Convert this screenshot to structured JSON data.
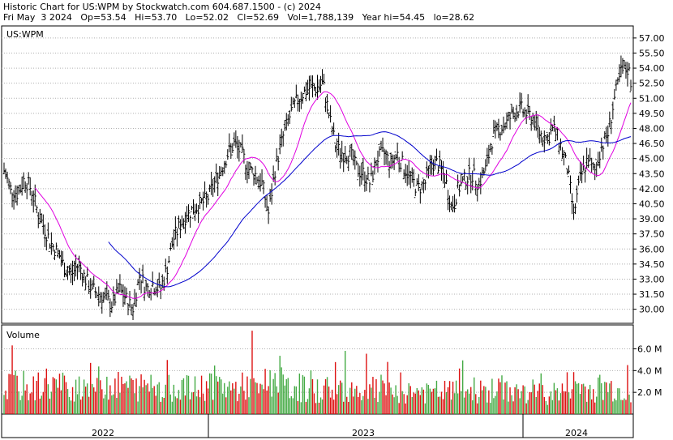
{
  "header": {
    "line1": "Historic Chart for US:WPM by Stockwatch.com 604.687.1500 - (c) 2024",
    "line2": "Fri May  3 2024   Op=53.54   Hi=53.70   Lo=52.02   Cl=52.69   Vol=1,788,139   Year hi=54.45   lo=28.62"
  },
  "chart_data": [
    {
      "type": "line",
      "panel": "price",
      "title": "US:WPM",
      "style": "high-low bars with moving averages",
      "y_ticks": [
        "57.00",
        "55.50",
        "54.00",
        "52.50",
        "51.00",
        "49.50",
        "48.00",
        "46.50",
        "45.00",
        "43.50",
        "42.00",
        "40.50",
        "39.00",
        "37.50",
        "36.00",
        "34.50",
        "33.00",
        "31.50",
        "30.00"
      ],
      "ylim": [
        28.6,
        58.2
      ],
      "x_ticks": [
        "2022",
        "2023",
        "2024"
      ],
      "colors": {
        "bars": "#000000",
        "ma_short": "#e000e0",
        "ma_long": "#0000cc",
        "grid": "#b0b0b0"
      },
      "series": [
        {
          "kind": "price",
          "x": [
            0,
            8,
            17,
            25,
            33,
            42,
            50,
            58,
            67,
            75,
            83,
            92,
            100,
            108,
            117,
            125,
            133,
            142,
            150,
            158,
            167,
            175,
            183,
            192,
            200,
            208,
            217,
            225,
            233,
            242,
            250,
            258,
            267,
            275,
            283,
            292,
            300,
            308,
            317,
            325,
            333,
            342,
            350,
            358,
            367,
            375,
            383,
            392,
            400,
            408,
            417,
            425,
            433,
            442,
            450,
            458,
            467,
            475,
            483,
            492,
            500,
            508,
            517,
            525,
            533,
            542,
            550,
            558,
            567,
            575,
            583,
            592,
            600,
            608,
            617,
            625,
            633,
            642,
            650,
            658,
            667,
            675,
            683,
            692,
            700,
            708,
            717,
            725,
            733,
            742,
            750,
            758,
            767,
            770
          ],
          "close": [
            43.8,
            42.0,
            41.5,
            43.0,
            42.0,
            39.5,
            38.0,
            36.5,
            35.5,
            34.0,
            33.5,
            34.5,
            33.0,
            32.0,
            31.5,
            31.0,
            30.5,
            32.0,
            31.0,
            30.0,
            33.5,
            32.0,
            32.5,
            32.0,
            34.0,
            37.0,
            38.5,
            39.5,
            40.0,
            40.5,
            41.0,
            42.5,
            44.0,
            45.5,
            46.5,
            45.5,
            44.0,
            43.5,
            42.5,
            39.5,
            44.0,
            47.0,
            49.0,
            50.5,
            51.5,
            52.0,
            52.0,
            52.5,
            49.0,
            46.0,
            45.5,
            45.5,
            44.0,
            43.5,
            42.5,
            45.0,
            45.5,
            44.5,
            45.5,
            44.0,
            43.0,
            42.0,
            42.5,
            44.5,
            44.5,
            43.0,
            40.0,
            42.0,
            43.0,
            43.5,
            42.5,
            44.0,
            47.0,
            48.0,
            48.5,
            49.5,
            50.0,
            49.5,
            49.0,
            47.5,
            47.0,
            48.0,
            46.5,
            44.0,
            39.5,
            43.0,
            45.0,
            43.5,
            46.0,
            47.5,
            51.0,
            53.5,
            54.0,
            52.7
          ]
        },
        {
          "kind": "ma_short",
          "name": ""
        },
        {
          "kind": "ma_long",
          "name": ""
        }
      ]
    },
    {
      "type": "bar",
      "panel": "volume",
      "title": "Volume",
      "y_ticks": [
        "6.0 M",
        "4.0 M",
        "2.0 M"
      ],
      "ylim": [
        0,
        8.2
      ],
      "unit": "M",
      "colors": {
        "up": "#44aa44",
        "down": "#dd1111"
      },
      "x_ticks": [
        "2022",
        "2023",
        "2024"
      ],
      "values_m": [
        3.1,
        3.4,
        3.2,
        3.0,
        2.9,
        3.3,
        3.6,
        3.4,
        3.3,
        3.0,
        3.2,
        3.5,
        3.8,
        3.4,
        3.6,
        3.5,
        3.3,
        3.2,
        3.4,
        3.0,
        3.1,
        3.5,
        3.4,
        3.2,
        3.0,
        3.2,
        3.3,
        2.9,
        2.8,
        3.1,
        3.4,
        3.6,
        3.2,
        3.0,
        2.9,
        3.1,
        3.3,
        3.5,
        3.4,
        3.8,
        3.7,
        3.0,
        2.9,
        3.1,
        3.0,
        2.8,
        2.7,
        2.9,
        3.0,
        2.8,
        2.9,
        3.1,
        2.9,
        2.7,
        2.6,
        2.8,
        2.9,
        2.7,
        2.6,
        2.5,
        2.6,
        2.7,
        2.5,
        2.4,
        2.5,
        2.6,
        2.7,
        2.5,
        2.6,
        2.7,
        2.8,
        2.6,
        2.5,
        2.7,
        2.9,
        2.8,
        2.6,
        2.4,
        2.5,
        2.6,
        2.4,
        2.3,
        2.5,
        2.6,
        3.2,
        3.4,
        3.0,
        2.8,
        2.9,
        3.1,
        3.0,
        2.8,
        2.7,
        2.6
      ]
    }
  ]
}
